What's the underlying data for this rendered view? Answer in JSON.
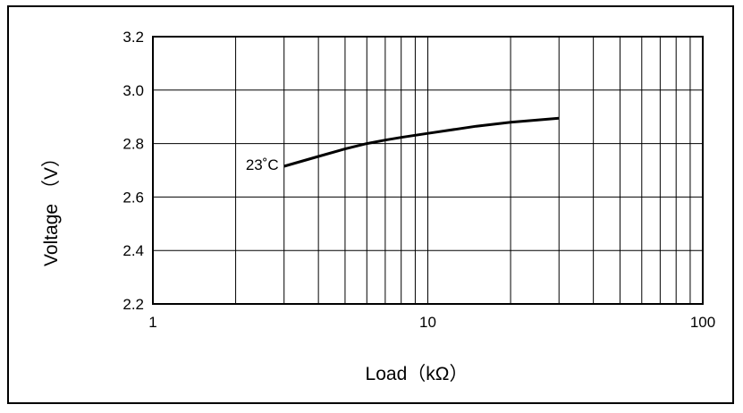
{
  "chart_data": {
    "type": "line",
    "title": "",
    "xlabel": "Load（kΩ）",
    "ylabel": "Voltage （V）",
    "x_scale": "log",
    "xlim": [
      1,
      100
    ],
    "ylim": [
      2.2,
      3.2
    ],
    "x_ticks": [
      "1",
      "10",
      "100"
    ],
    "y_ticks": [
      "3.2",
      "3.0",
      "2.8",
      "2.6",
      "2.4",
      "2.2"
    ],
    "grid": true,
    "series": [
      {
        "name": "23˚C",
        "x": [
          3,
          4,
          5,
          6,
          7,
          8,
          10,
          15,
          20,
          30
        ],
        "y": [
          2.715,
          2.752,
          2.78,
          2.8,
          2.813,
          2.823,
          2.838,
          2.865,
          2.88,
          2.895
        ]
      }
    ],
    "line_color": "#000000"
  }
}
